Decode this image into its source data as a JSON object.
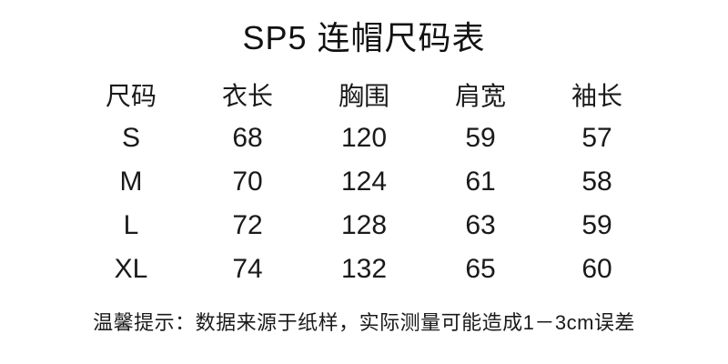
{
  "colors": {
    "background": "#ffffff",
    "text": "#1a1a1a"
  },
  "chart_data": {
    "type": "table",
    "title": "SP5 连帽尺码表",
    "columns": [
      "尺码",
      "衣长",
      "胸围",
      "肩宽",
      "袖长"
    ],
    "rows": [
      [
        "S",
        "68",
        "120",
        "59",
        "57"
      ],
      [
        "M",
        "70",
        "124",
        "61",
        "58"
      ],
      [
        "L",
        "72",
        "128",
        "63",
        "59"
      ],
      [
        "XL",
        "74",
        "132",
        "65",
        "60"
      ]
    ],
    "unit_hint": "cm",
    "note": "温馨提示：数据来源于纸样，实际测量可能造成1－3cm误差",
    "layout": {
      "grid": "off",
      "borders": "none",
      "alignment": "center"
    }
  }
}
